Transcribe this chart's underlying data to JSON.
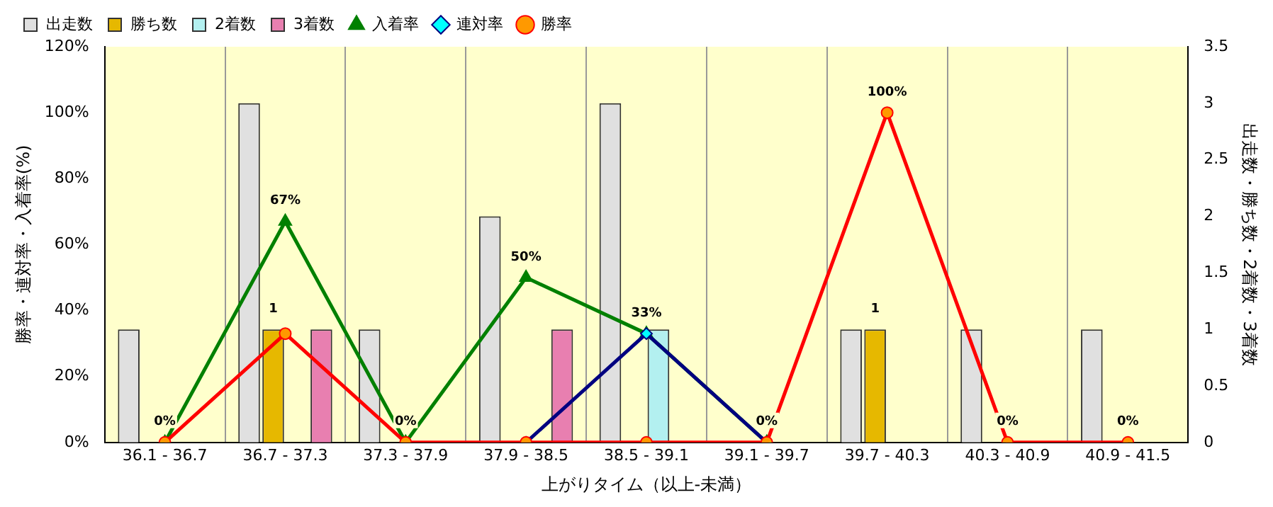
{
  "chart_data": {
    "type": "bar",
    "xlabel": "上がりタイム（以上-未満）",
    "ylabel": "勝率・連対率・入着率(%)",
    "y2label": "出走数・勝ち数・2着数・3着数",
    "categories": [
      "36.1 - 36.7",
      "36.7 - 37.3",
      "37.3 - 37.9",
      "37.9 - 38.5",
      "38.5 - 39.1",
      "39.1 - 39.7",
      "39.7 - 40.3",
      "40.3 - 40.9",
      "40.9 - 41.5"
    ],
    "series": [
      {
        "name": "出走数",
        "axis": "y2",
        "color": "#e0e0e0",
        "values": [
          1,
          3,
          1,
          2,
          3,
          0,
          1,
          1,
          1
        ]
      },
      {
        "name": "勝ち数",
        "axis": "y2",
        "color": "#e6b800",
        "values": [
          0,
          1,
          0,
          0,
          0,
          0,
          1,
          0,
          0
        ],
        "value_labels": [
          null,
          "1",
          null,
          null,
          null,
          null,
          "1",
          null,
          null
        ]
      },
      {
        "name": "2着数",
        "axis": "y2",
        "color": "#b3f0f0",
        "values": [
          0,
          0,
          0,
          0,
          1,
          0,
          0,
          0,
          0
        ]
      },
      {
        "name": "3着数",
        "axis": "y2",
        "color": "#e87fb0",
        "values": [
          0,
          1,
          0,
          1,
          0,
          0,
          0,
          0,
          0
        ]
      },
      {
        "name": "入着率",
        "type": "line",
        "color": "#008000",
        "marker": "triangle",
        "values": [
          0,
          67,
          0,
          50,
          33,
          0,
          null,
          null,
          null
        ],
        "value_labels": [
          "0%",
          "67%",
          "0%",
          "50%",
          "33%",
          "0%",
          null,
          null,
          null
        ]
      },
      {
        "name": "連対率",
        "type": "line",
        "color": "#000080",
        "marker": "diamond",
        "values": [
          null,
          null,
          null,
          0,
          33,
          0,
          null,
          null,
          null
        ]
      },
      {
        "name": "勝率",
        "type": "line",
        "color": "#ff0000",
        "marker": "circle",
        "values": [
          0,
          33,
          0,
          0,
          0,
          0,
          100,
          0,
          0
        ],
        "value_labels": [
          null,
          null,
          null,
          null,
          null,
          null,
          "100%",
          "0%",
          "0%"
        ]
      }
    ],
    "ylim": [
      0,
      120
    ],
    "yticks": [
      {
        "value": 0,
        "label": "0%"
      },
      {
        "value": 20,
        "label": "20%"
      },
      {
        "value": 40,
        "label": "40%"
      },
      {
        "value": 60,
        "label": "60%"
      },
      {
        "value": 80,
        "label": "80%"
      },
      {
        "value": 100,
        "label": "100%"
      },
      {
        "value": 120,
        "label": "120%"
      }
    ],
    "y2lim": [
      0,
      3.5
    ],
    "y2ticks": [
      0,
      0.5,
      1,
      1.5,
      2,
      2.5,
      3,
      3.5
    ],
    "grid": "x",
    "legend": "top left"
  }
}
